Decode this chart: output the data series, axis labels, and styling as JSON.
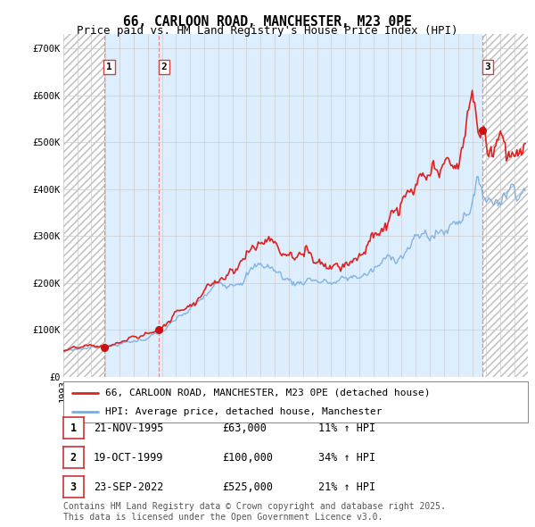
{
  "title": "66, CARLOON ROAD, MANCHESTER, M23 0PE",
  "subtitle": "Price paid vs. HM Land Registry's House Price Index (HPI)",
  "ylim": [
    0,
    730000
  ],
  "yticks": [
    0,
    100000,
    200000,
    300000,
    400000,
    500000,
    600000,
    700000
  ],
  "ytick_labels": [
    "£0",
    "£100K",
    "£200K",
    "£300K",
    "£400K",
    "£500K",
    "£600K",
    "£700K"
  ],
  "xlim_start": 1993.0,
  "xlim_end": 2025.92,
  "line1_color": "#dd2222",
  "line2_color": "#7aaddd",
  "marker_color": "#cc1111",
  "vline_color": "#ee8888",
  "hatch_color": "#cccccc",
  "bg_hatch_color": "#e8e8e8",
  "blue_fill_color": "#ddeeff",
  "grid_color": "#cccccc",
  "background_color": "#ffffff",
  "transactions": [
    {
      "id": 1,
      "date_num": 1995.9,
      "price": 63000,
      "date_str": "21-NOV-1995",
      "pct": "11%",
      "dir": "↑"
    },
    {
      "id": 2,
      "date_num": 1999.8,
      "price": 100000,
      "date_str": "19-OCT-1999",
      "pct": "34%",
      "dir": "↑"
    },
    {
      "id": 3,
      "date_num": 2022.73,
      "price": 525000,
      "date_str": "23-SEP-2022",
      "pct": "21%",
      "dir": "↑"
    }
  ],
  "legend_label1": "66, CARLOON ROAD, MANCHESTER, M23 0PE (detached house)",
  "legend_label2": "HPI: Average price, detached house, Manchester",
  "footer": "Contains HM Land Registry data © Crown copyright and database right 2025.\nThis data is licensed under the Open Government Licence v3.0.",
  "title_fontsize": 10.5,
  "subtitle_fontsize": 9,
  "tick_fontsize": 7.5,
  "legend_fontsize": 8,
  "footer_fontsize": 7
}
